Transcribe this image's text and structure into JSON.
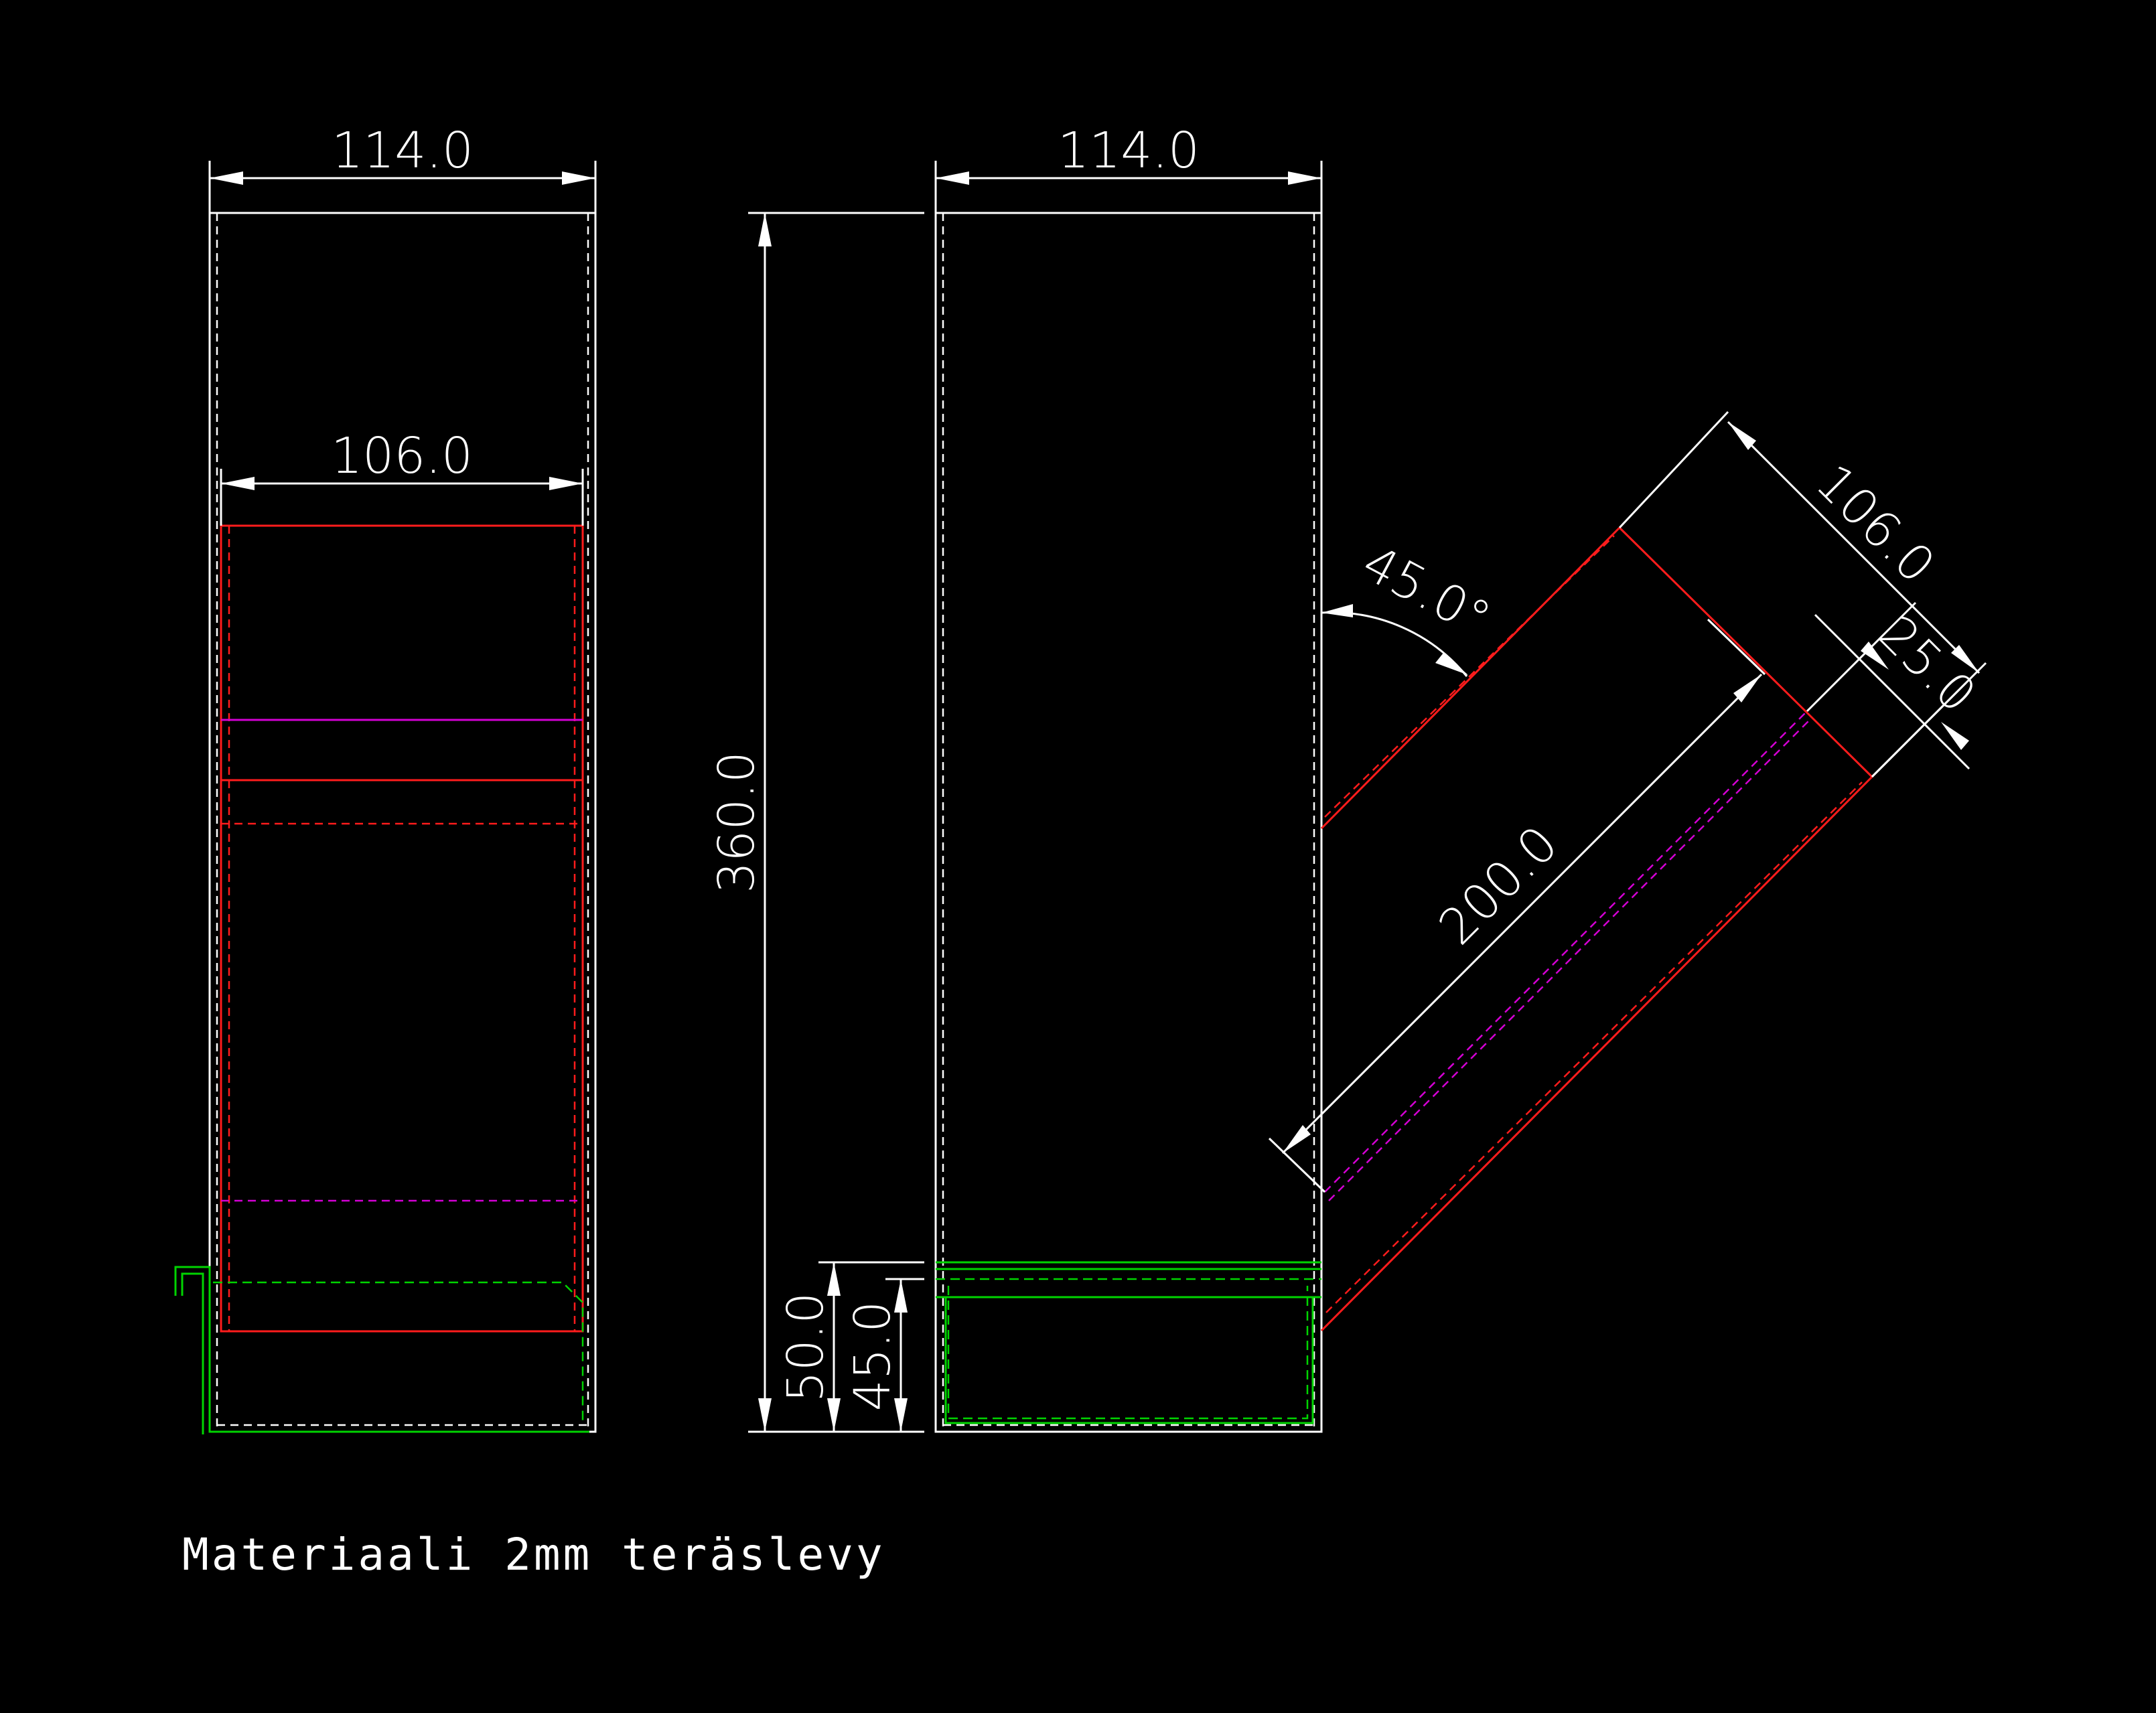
{
  "dimensions": {
    "left_width": "114.0",
    "left_inner_width": "106.0",
    "right_width": "114.0",
    "height": "360.0",
    "bottom_50": "50.0",
    "bottom_45": "45.0",
    "angle": "45.0°",
    "branch_width": "106.0",
    "branch_offset": "25.0",
    "branch_length": "200.0"
  },
  "note": "Materiaali 2mm teräslevy",
  "colors": {
    "background": "#000000",
    "outline": "#ffffff",
    "red": "#ff1c1c",
    "magenta": "#d400d4",
    "green": "#00d400"
  }
}
